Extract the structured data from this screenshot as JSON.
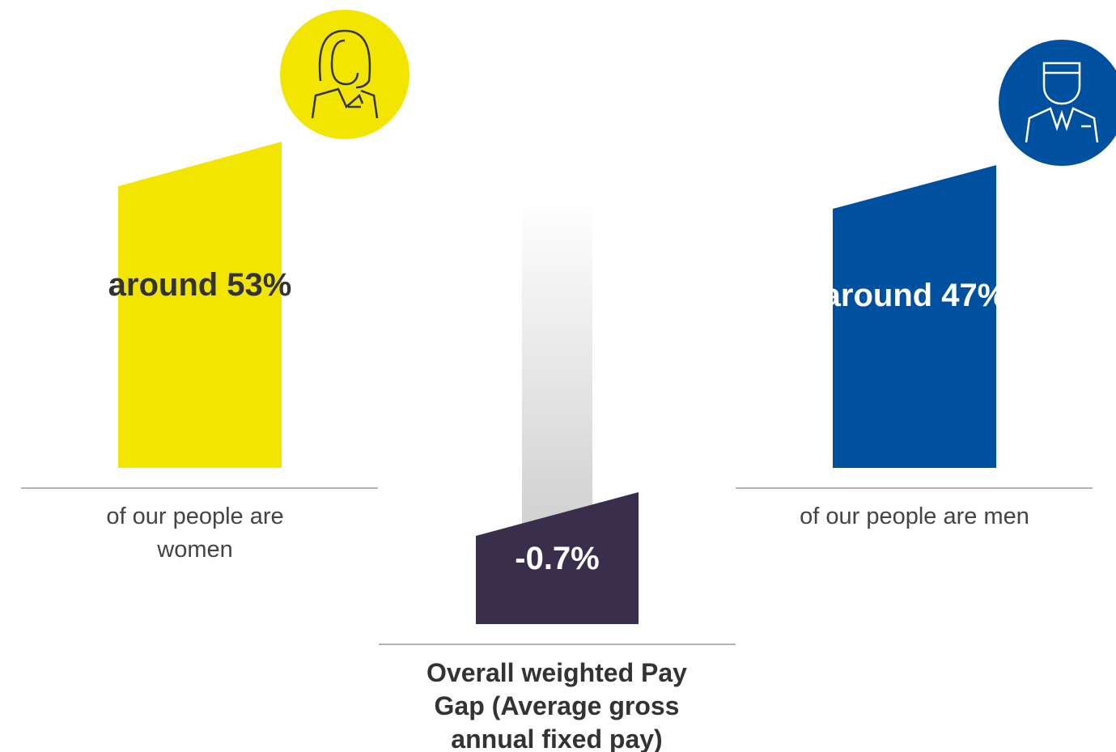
{
  "women": {
    "share": "around 53%",
    "caption": "of our people are women"
  },
  "pay_gap": {
    "value": "-0.7%",
    "caption": "Overall weighted Pay Gap (Average gross annual fixed pay)"
  },
  "men": {
    "share": "around 47%",
    "caption": "of our people are men"
  }
}
